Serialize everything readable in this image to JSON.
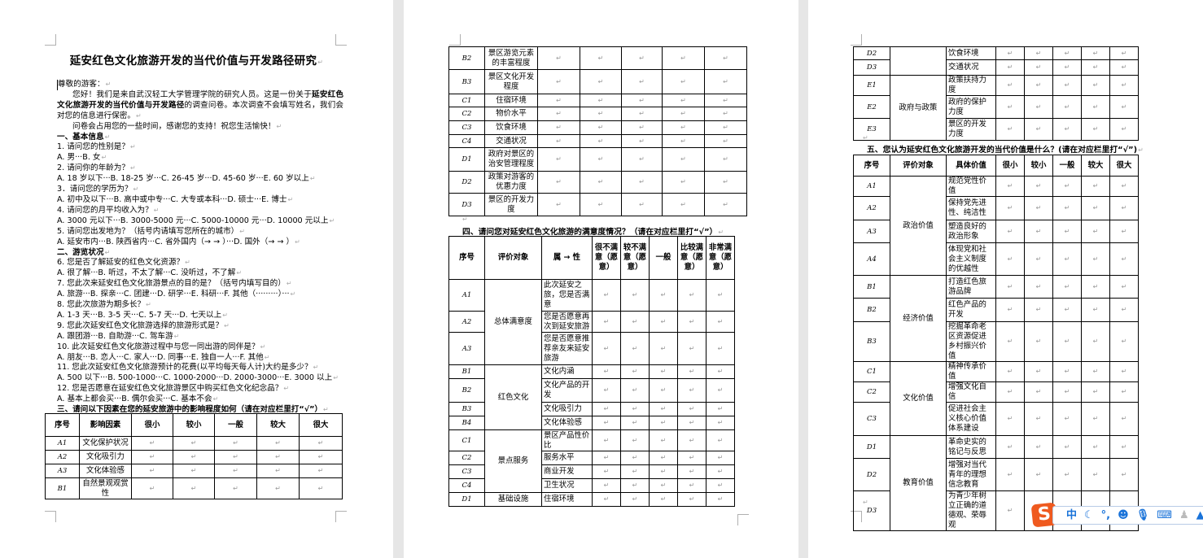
{
  "page1": {
    "title": "延安红色文化旅游开发的当代价值与开发路径研究",
    "salutation": "尊敬的游客：",
    "intro": {
      "pre": "您好！我们是来自武汉轻工大学管理学院的研究人员。这是一份关于",
      "bold": "延安红色文化旅游开发的当代价值与开发路径",
      "post": "的调查问卷。本次调查不会填写姓名，我们会对您的信息进行保密。"
    },
    "lines": [
      {
        "text": "问卷会占用您的一些时间，感谢您的支持！祝您生活愉快！",
        "style": "ind"
      },
      {
        "text": "一、基本信息",
        "style": "b"
      },
      {
        "text": "1. 请问您的性别是？",
        "style": ""
      },
      {
        "text": "A. 男···B. 女",
        "style": ""
      },
      {
        "text": "2. 请问你的年龄为？",
        "style": ""
      },
      {
        "text": "A. 18 岁以下···B. 18-25 岁···C. 26-45 岁···D. 45-60 岁···E. 60 岁以上",
        "style": ""
      },
      {
        "text": "3．请问您的学历为？",
        "style": ""
      },
      {
        "text": "A. 初中及以下···B. 高中或中专···C. 大专或本科···D. 硕士···E. 博士",
        "style": ""
      },
      {
        "text": "4. 请问您的月平均收入为？",
        "style": ""
      },
      {
        "text": "A. 3000 元以下···B. 3000-5000 元···C. 5000-10000 元···D. 10000 元以上",
        "style": ""
      },
      {
        "text": "5. 请问您出发地为？（括号内请填写您所在的城市）",
        "style": ""
      },
      {
        "text": "A. 延安市内···B. 陕西省内···C. 省外国内（→ →  ）···D. 国外（→ →  ）",
        "style": ""
      },
      {
        "text": "二、游览状况",
        "style": "b"
      },
      {
        "text": "6. 您是否了解延安的红色文化资源？",
        "style": ""
      },
      {
        "text": "A. 很了解···B. 听过，不太了解···C. 没听过，不了解",
        "style": ""
      },
      {
        "text": "7. 您此次来延安红色文化旅游景点的目的是？（括号内填写目的）",
        "style": ""
      },
      {
        "text": "A. 旅游···B. 探亲···C. 团建···D. 研学···E. 科研···F. 其他（·········）···",
        "style": ""
      },
      {
        "text": "8. 您此次旅游为期多长？",
        "style": ""
      },
      {
        "text": "A. 1-3 天···B. 3-5 天···C. 5-7 天···D. 七天以上",
        "style": ""
      },
      {
        "text": "9. 您此次延安红色文化旅游选择的旅游形式是？",
        "style": ""
      },
      {
        "text": "A. 跟团游···B. 自助游···C. 驾车游",
        "style": ""
      },
      {
        "text": "10. 此次延安红色文化旅游过程中与您一同出游的同伴是？",
        "style": ""
      },
      {
        "text": "A. 朋友···B. 恋人···C. 家人···D. 同事···E. 独自一人···F. 其他",
        "style": ""
      },
      {
        "text": "11. 您此次延安红色文化旅游预计的花费(以平均每天每人计)大约是多少？",
        "style": ""
      },
      {
        "text": "A. 500 以下···B. 500-1000···C. 1000-2000···D. 2000-3000···E. 3000 以上",
        "style": ""
      },
      {
        "text": "12. 您是否愿意在延安红色文化旅游景区中购买红色文化纪念品？",
        "style": ""
      },
      {
        "text": "A. 基本上都会买···B. 偶尔会买···C. 基本不会",
        "style": ""
      },
      {
        "text": "三、请问以下因素在您的延安旅游中的影响程度如何（请在对应栏里打“√”）",
        "style": "b"
      }
    ],
    "factors_table": {
      "headers": [
        "序号",
        "影响因素",
        "很小",
        "较小",
        "一般",
        "较大",
        "很大"
      ],
      "rows": [
        {
          "id": "A1",
          "label": "文化保护状况"
        },
        {
          "id": "A2",
          "label": "文化吸引力"
        },
        {
          "id": "A3",
          "label": "文化体验感"
        },
        {
          "id": "B1",
          "label": "自然景观观赏性"
        }
      ]
    }
  },
  "page2": {
    "factors_table_cont": {
      "rows": [
        {
          "id": "B2",
          "label": "景区游览元素的丰富程度"
        },
        {
          "id": "B3",
          "label": "景区文化开发程度"
        },
        {
          "id": "C1",
          "label": "住宿环境"
        },
        {
          "id": "C2",
          "label": "物价水平"
        },
        {
          "id": "C3",
          "label": "饮食环境"
        },
        {
          "id": "C4",
          "label": "交通状况"
        },
        {
          "id": "D1",
          "label": "政府对景区的治安管理程度"
        },
        {
          "id": "D2",
          "label": "政策对游客的优惠力度"
        },
        {
          "id": "D3",
          "label": "景区的开发力度"
        }
      ]
    },
    "satisfaction_caption": "四、请问您对延安红色文化旅游的满意度情况？（请在对应栏里打“√”）",
    "satisfaction_table": {
      "headers": [
        "序号",
        "评价对象",
        "属 → 性",
        "很不满意（愿意）",
        "较不满意（愿意）",
        "一般",
        "比较满意（愿意）",
        "非常满意（愿意）"
      ],
      "groups": [
        {
          "label": "总体满意度",
          "rows": [
            {
              "id": "A1",
              "label": "此次延安之旅，您是否满意"
            },
            {
              "id": "A2",
              "label": "您是否愿意再次到延安旅游"
            },
            {
              "id": "A3",
              "label": "您是否愿意推荐亲友来延安旅游"
            }
          ]
        },
        {
          "label": "红色文化",
          "rows": [
            {
              "id": "B1",
              "label": "文化内涵"
            },
            {
              "id": "B2",
              "label": "文化产品的开发"
            },
            {
              "id": "B3",
              "label": "文化吸引力"
            },
            {
              "id": "B4",
              "label": "文化体验感"
            }
          ]
        },
        {
          "label": "景点服务",
          "rows": [
            {
              "id": "C1",
              "label": "景区产品性价比"
            },
            {
              "id": "C2",
              "label": "服务水平"
            },
            {
              "id": "C3",
              "label": "商业开发"
            },
            {
              "id": "C4",
              "label": "卫生状况"
            }
          ]
        },
        {
          "label": "基础设施",
          "rows": [
            {
              "id": "D1",
              "label": "住宿环境"
            }
          ]
        }
      ]
    }
  },
  "page3": {
    "satisfaction_table_cont": {
      "groups": [
        {
          "label": "",
          "rows": [
            {
              "id": "D2",
              "label": "饮食环境"
            },
            {
              "id": "D3",
              "label": "交通状况"
            }
          ]
        },
        {
          "label": "政府与政策",
          "rows": [
            {
              "id": "E1",
              "label": "政策扶持力度"
            },
            {
              "id": "E2",
              "label": "政府的保护力度"
            },
            {
              "id": "E3",
              "label": "景区的开发力度"
            }
          ]
        }
      ]
    },
    "values_caption": "五、您认为延安红色文化旅游开发的当代价值是什么？(请在对应栏里打“√”)",
    "values_table": {
      "headers": [
        "序号",
        "评价对象",
        "具体价值",
        "很小",
        "较小",
        "一般",
        "较大",
        "很大"
      ],
      "groups": [
        {
          "label": "政治价值",
          "rows": [
            {
              "id": "A1",
              "label": "规范党性价值"
            },
            {
              "id": "A2",
              "label": "保持党先进性、纯洁性"
            },
            {
              "id": "A3",
              "label": "塑造良好的政治形象"
            },
            {
              "id": "A4",
              "label": "体现党和社会主义制度的优越性"
            }
          ]
        },
        {
          "label": "经济价值",
          "rows": [
            {
              "id": "B1",
              "label": "打造红色旅游品牌"
            },
            {
              "id": "B2",
              "label": "红色产品的开发"
            },
            {
              "id": "B3",
              "label": "挖掘革命老区资源促进乡村振兴价值"
            }
          ]
        },
        {
          "label": "文化价值",
          "rows": [
            {
              "id": "C1",
              "label": "精神传承价值"
            },
            {
              "id": "C2",
              "label": "增强文化自信"
            },
            {
              "id": "C3",
              "label": "促进社会主义核心价值体系建设"
            }
          ]
        },
        {
          "label": "教育价值",
          "rows": [
            {
              "id": "D1",
              "label": "革命史实的铭记与反思"
            },
            {
              "id": "D2",
              "label": "增强对当代青年的理想信念教育"
            },
            {
              "id": "D3",
              "label": "为青少年树立正确的道德观、荣辱观"
            }
          ]
        }
      ]
    }
  },
  "ime_toolbar": {
    "logo": "S",
    "mode_label": "中",
    "icons": [
      "sogou-logo-icon",
      "moon-icon",
      "punctuation-icon",
      "emoji-icon",
      "microphone-icon",
      "keyboard-icon",
      "user-icon",
      "skin-icon"
    ],
    "accent_color": "#1a73d9",
    "logo_color": "#ef5a1f"
  }
}
